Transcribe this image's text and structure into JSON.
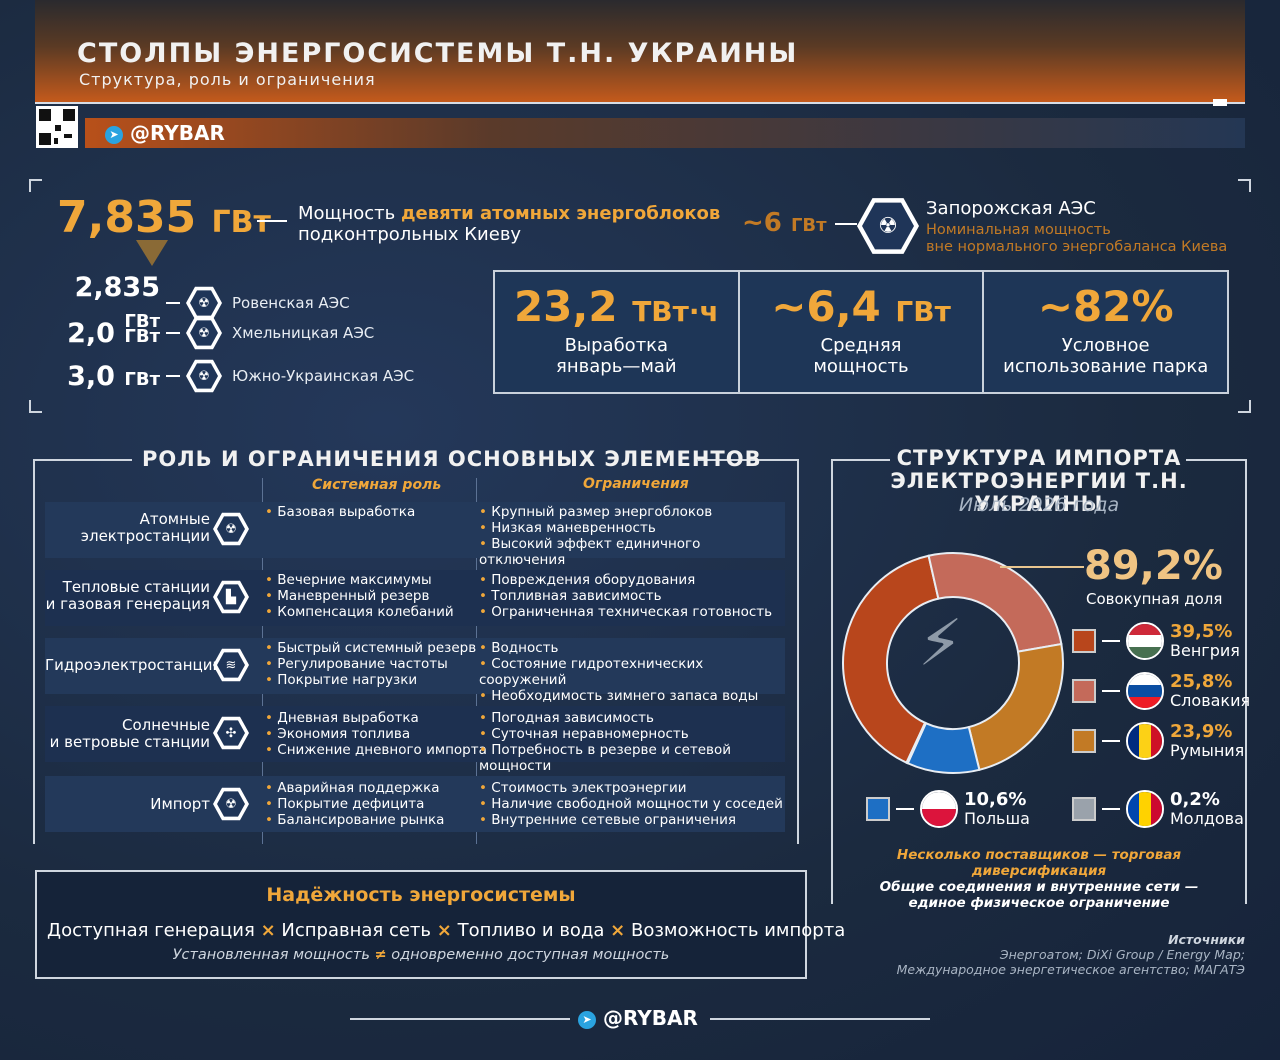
{
  "header": {
    "title": "СТОЛПЫ ЭНЕРГОСИСТЕМЫ Т.Н. УКРАИНЫ",
    "subtitle": "Структура, роль и ограничения",
    "brand": "@RYBAR"
  },
  "nuclear": {
    "total_value": "7,835",
    "total_unit": "ГВт",
    "total_desc_plain1": "Мощность ",
    "total_desc_bold": "девяти атомных энергоблоков",
    "total_desc_plain2": "подконтрольных Киеву",
    "zaes_value": "~6",
    "zaes_unit": "ГВт",
    "zaes_name": "Запорожская АЭС",
    "zaes_note1": "Номинальная мощность",
    "zaes_note2": "вне нормального энергобаланса Киева",
    "plants": [
      {
        "value": "2,835",
        "unit": "ГВт",
        "name": "Ровенская АЭС"
      },
      {
        "value": "2,0",
        "unit": "ГВт",
        "name": "Хмельницкая АЭС"
      },
      {
        "value": "3,0",
        "unit": "ГВт",
        "name": "Южно-Украинская АЭС"
      }
    ]
  },
  "stats": [
    {
      "value": "23,2",
      "unit": "ТВт·ч",
      "label1": "Выработка",
      "label2": "январь—май"
    },
    {
      "value": "~6,4",
      "unit": "ГВт",
      "label1": "Средняя",
      "label2": "мощность"
    },
    {
      "value": "~82%",
      "unit": "",
      "label1": "Условное",
      "label2": "использование парка"
    }
  ],
  "roles": {
    "title": "РОЛЬ И ОГРАНИЧЕНИЯ ОСНОВНЫХ ЭЛЕМЕНТОВ",
    "col_role": "Системная роль",
    "col_limits": "Ограничения",
    "rows": [
      {
        "name1": "Атомные",
        "name2": "электростанции",
        "icon": "nuclear-plant-icon",
        "role": [
          "Базовая выработка"
        ],
        "limits": [
          "Крупный размер энергоблоков",
          "Низкая маневренность",
          "Высокий эффект единичного отключения"
        ]
      },
      {
        "name1": "Тепловые станции",
        "name2": "и газовая генерация",
        "icon": "thermal-plant-icon",
        "role": [
          "Вечерние максимумы",
          "Маневренный резерв",
          "Компенсация колебаний"
        ],
        "limits": [
          "Повреждения оборудования",
          "Топливная зависимость",
          "Ограниченная техническая готовность"
        ]
      },
      {
        "name1": "Гидроэлектростанции",
        "name2": "",
        "icon": "hydro-plant-icon",
        "role": [
          "Быстрый системный резерв",
          "Регулирование частоты",
          "Покрытие нагрузки"
        ],
        "limits": [
          "Водность",
          "Состояние гидротехнических сооружений",
          "Необходимость зимнего запаса воды"
        ]
      },
      {
        "name1": "Солнечные",
        "name2": "и ветровые станции",
        "icon": "wind-solar-icon",
        "role": [
          "Дневная выработка",
          "Экономия топлива",
          "Снижение дневного импорта"
        ],
        "limits": [
          "Погодная зависимость",
          "Суточная неравномерность",
          "Потребность в резерве и сетевой мощности"
        ]
      },
      {
        "name1": "Импорт",
        "name2": "",
        "icon": "import-icon",
        "role": [
          "Аварийная поддержка",
          "Покрытие дефицита",
          "Балансирование рынка"
        ],
        "limits": [
          "Стоимость электроэнергии",
          "Наличие свободной мощности у соседей",
          "Внутренние сетевые ограничения"
        ]
      }
    ]
  },
  "reliability": {
    "title": "Надёжность энергосистемы",
    "items": [
      "Доступная генерация",
      "Исправная сеть",
      "Топливо и вода",
      "Возможность импорта"
    ],
    "sub_left": "Установленная мощность",
    "sub_sign": "≠",
    "sub_right": "одновременно доступная мощность"
  },
  "imports": {
    "title1": "СТРУКТУРА ИМПОРТА",
    "title2": "ЭЛЕКТРОЭНЕРГИИ Т.Н. УКРАИНЫ",
    "period": "Июль 2026 года",
    "total_pct": "89,2%",
    "total_label": "Совокупная доля",
    "note1": "Несколько поставщиков — торговая диверсификация",
    "note2": "Общие соединения и внутренние сети —",
    "note3": "единое физическое ограничение"
  },
  "chart_data": {
    "type": "pie",
    "categories": [
      "Венгрия",
      "Словакия",
      "Румыния",
      "Польша",
      "Молдова"
    ],
    "values": [
      39.5,
      25.8,
      23.9,
      10.6,
      0.2
    ],
    "labels": [
      "39,5%",
      "25,8%",
      "23,9%",
      "10,6%",
      "0,2%"
    ],
    "colors": [
      "#b8461c",
      "#c46a5a",
      "#c27a25",
      "#1e6fc4",
      "#9aa2ab"
    ]
  },
  "sources": {
    "title": "Источники",
    "line1": "Энергоатом; DiXi Group / Energy Map;",
    "line2": "Международное энергетическое агентство; МАГАТЭ"
  },
  "footer": {
    "brand": "@RYBAR"
  }
}
